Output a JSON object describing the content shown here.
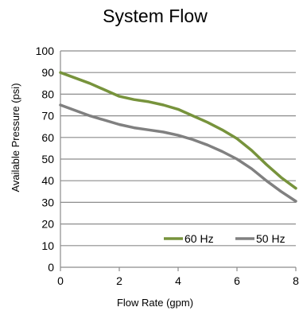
{
  "chart_data": {
    "type": "line",
    "title": "System Flow",
    "xlabel": "Flow Rate (gpm)",
    "ylabel": "Available Pressure (psi)",
    "xlim": [
      0,
      8
    ],
    "ylim": [
      0,
      100
    ],
    "xticks": [
      0,
      2,
      4,
      6,
      8
    ],
    "yticks": [
      0,
      10,
      20,
      30,
      40,
      50,
      60,
      70,
      80,
      90,
      100
    ],
    "grid": "horizontal",
    "legend_position": "bottom-right",
    "series": [
      {
        "name": "60 Hz",
        "color": "#77933c",
        "x": [
          0,
          1,
          2,
          2.5,
          3,
          3.5,
          4,
          4.5,
          5,
          5.5,
          6,
          6.5,
          7,
          7.5,
          8
        ],
        "y": [
          90,
          85,
          79,
          77.5,
          76.5,
          75,
          73,
          70,
          67,
          63.5,
          59.5,
          54,
          47.5,
          41.5,
          36.5
        ]
      },
      {
        "name": "50 Hz",
        "color": "#808080",
        "x": [
          0,
          1,
          2,
          2.5,
          3,
          3.5,
          4,
          4.5,
          5,
          5.5,
          6,
          6.5,
          7,
          7.5,
          8
        ],
        "y": [
          75,
          70,
          66,
          64.5,
          63.5,
          62.5,
          61,
          59,
          56.5,
          53.5,
          50,
          45.5,
          40,
          35,
          30.5
        ]
      }
    ]
  }
}
